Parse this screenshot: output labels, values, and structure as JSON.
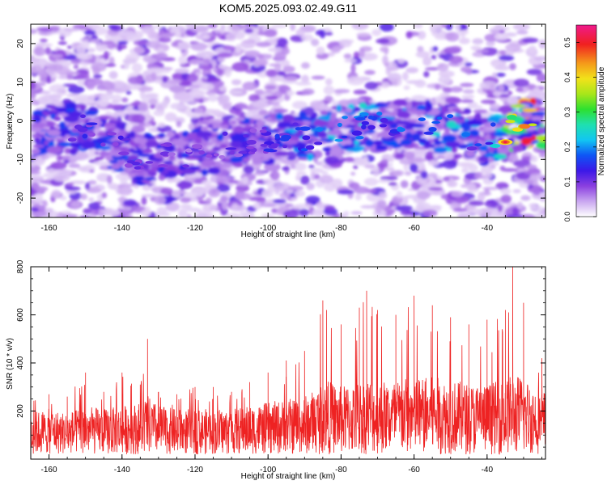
{
  "title": "KOM5.2025.093.02.49.G11",
  "chart_data": [
    {
      "type": "heatmap",
      "xlabel": "Height of straight line (km)",
      "ylabel": "Frequency (Hz)",
      "xlim": [
        -165,
        -24
      ],
      "ylim": [
        -25,
        25
      ],
      "xticks": [
        -160,
        -140,
        -120,
        -100,
        -80,
        -60,
        -40
      ],
      "yticks": [
        -20,
        -10,
        0,
        10,
        20
      ],
      "colorbar": {
        "label": "Normalized spectral amplitude",
        "range": [
          0,
          0.55
        ],
        "ticks": [
          0.0,
          0.1,
          0.2,
          0.3,
          0.4,
          0.5
        ]
      },
      "ridge": {
        "description_points_x": [
          -150,
          -135,
          -120,
          -105,
          -90,
          -80,
          -70,
          -60,
          -50,
          -40,
          -30
        ],
        "center_frequency": [
          -2,
          -10,
          -8,
          -5,
          -4,
          -2,
          -1,
          -1,
          -2,
          -5,
          -1
        ],
        "peak_amplitude": [
          0.13,
          0.12,
          0.1,
          0.12,
          0.17,
          0.2,
          0.2,
          0.18,
          0.22,
          0.14,
          0.52
        ]
      }
    },
    {
      "type": "line",
      "xlabel": "Height of straight line (km)",
      "ylabel": "SNR (10 * v/v)",
      "xlim": [
        -165,
        -24
      ],
      "ylim": [
        0,
        800
      ],
      "xticks": [
        -160,
        -140,
        -120,
        -100,
        -80,
        -60,
        -40
      ],
      "yticks": [
        200,
        400,
        600,
        800
      ],
      "series": [
        {
          "color": "#ee2222",
          "x": [
            -165,
            -160,
            -155,
            -150,
            -145,
            -140,
            -135,
            -133,
            -130,
            -125,
            -120,
            -115,
            -110,
            -105,
            -100,
            -95,
            -90,
            -85,
            -84,
            -80,
            -75,
            -73,
            -70,
            -65,
            -60,
            -55,
            -50,
            -45,
            -40,
            -35,
            -33,
            -30,
            -25
          ],
          "baseline": [
            130,
            140,
            130,
            150,
            140,
            150,
            160,
            180,
            150,
            140,
            140,
            140,
            140,
            150,
            160,
            170,
            180,
            220,
            230,
            210,
            230,
            240,
            230,
            230,
            240,
            240,
            230,
            220,
            220,
            230,
            250,
            240,
            200
          ],
          "peaks": [
            280,
            270,
            260,
            360,
            280,
            360,
            310,
            500,
            280,
            270,
            300,
            300,
            280,
            320,
            360,
            410,
            450,
            660,
            620,
            560,
            630,
            700,
            620,
            600,
            680,
            640,
            590,
            560,
            580,
            620,
            800,
            650,
            420
          ]
        }
      ]
    }
  ]
}
